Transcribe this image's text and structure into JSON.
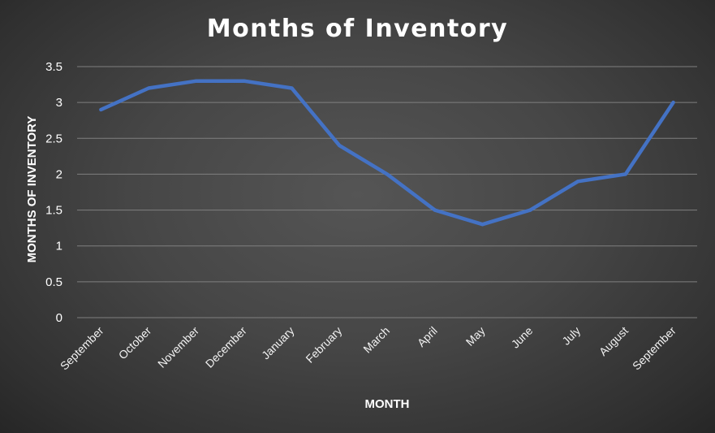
{
  "chart_data": {
    "type": "line",
    "title": "Months of Inventory",
    "xlabel": "MONTH",
    "ylabel": "MONTHS OF INVENTORY",
    "categories": [
      "September",
      "October",
      "November",
      "December",
      "January",
      "February",
      "March",
      "April",
      "May",
      "June",
      "July",
      "August",
      "September"
    ],
    "series": [
      {
        "values": [
          2.9,
          3.2,
          3.3,
          3.3,
          3.2,
          2.4,
          2.0,
          1.5,
          1.3,
          1.5,
          1.9,
          2.0,
          3.0
        ]
      }
    ],
    "ylim": [
      0,
      3.5
    ],
    "yticks": [
      "0",
      "0.5",
      "1",
      "1.5",
      "2",
      "2.5",
      "3",
      "3.5"
    ],
    "grid": true,
    "legend": "none",
    "colors": {
      "line": "#4472C4",
      "gridline": "#7f7f7f",
      "text": "#ffffff"
    }
  }
}
